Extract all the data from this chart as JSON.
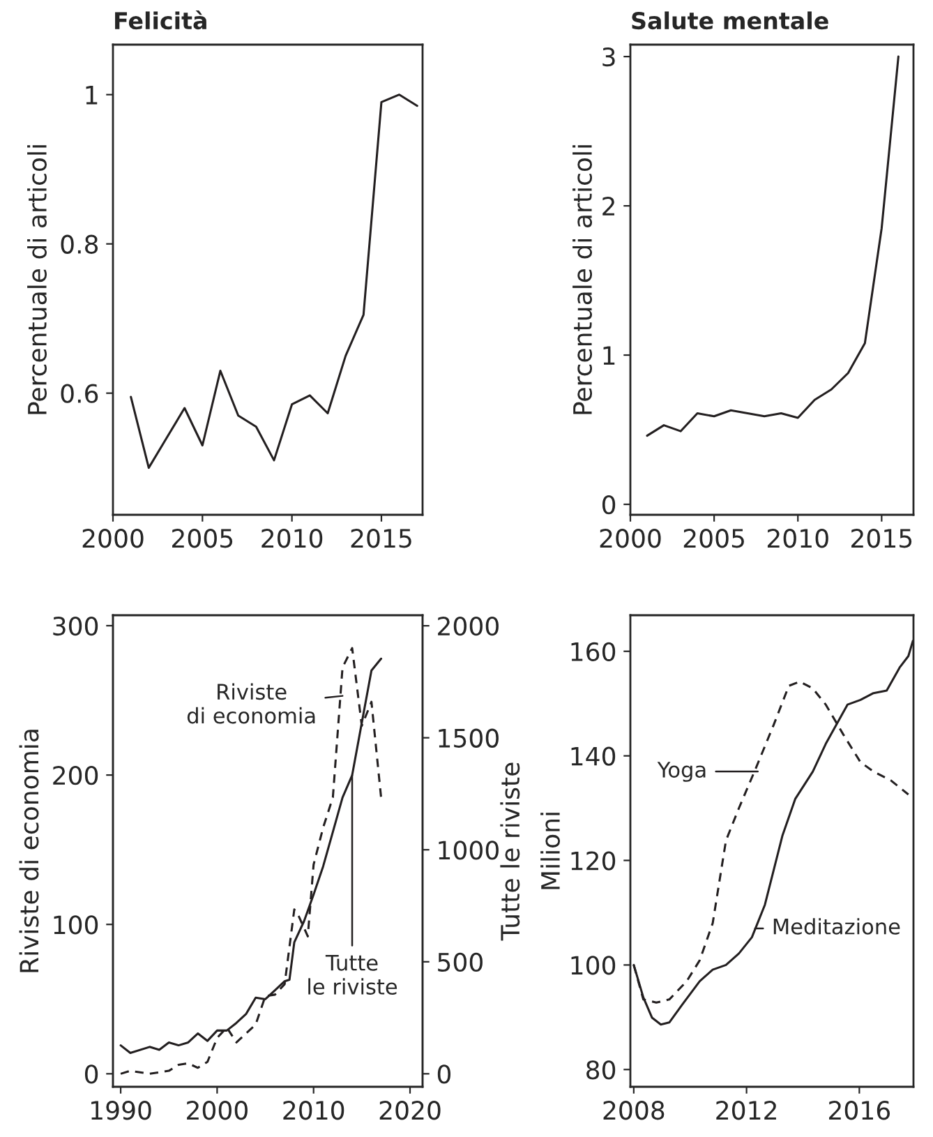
{
  "chart_data": [
    {
      "type": "line",
      "title": "Felicità",
      "ylabel": "Percentuale di articoli",
      "xlim": [
        2000,
        2017.3
      ],
      "xticks": [
        2000,
        2005,
        2010,
        2015
      ],
      "ylim": [
        0.437,
        1.067
      ],
      "yticks": [
        0.6,
        0.8,
        1
      ],
      "grid": false,
      "series": [
        {
          "color": "#231f20",
          "line_style": "solid",
          "x": [
            2001,
            2002,
            2003,
            2004,
            2005,
            2006,
            2007,
            2008,
            2009,
            2010,
            2011,
            2012,
            2013,
            2014,
            2015,
            2016,
            2017
          ],
          "values": [
            0.595,
            0.5,
            0.54,
            0.58,
            0.53,
            0.63,
            0.57,
            0.555,
            0.51,
            0.585,
            0.597,
            0.573,
            0.65,
            0.705,
            0.99,
            1.0,
            0.985
          ]
        }
      ]
    },
    {
      "type": "line",
      "title": "Salute mentale",
      "ylabel": "Percentuale di articoli",
      "xlim": [
        2000,
        2016.9
      ],
      "xticks": [
        2000,
        2005,
        2010,
        2015
      ],
      "ylim": [
        -0.07,
        3.08
      ],
      "yticks": [
        0,
        1,
        2,
        3
      ],
      "grid": false,
      "series": [
        {
          "color": "#231f20",
          "line_style": "solid",
          "x": [
            2001,
            2002,
            2003,
            2004,
            2005,
            2006,
            2007,
            2008,
            2009,
            2010,
            2011,
            2012,
            2013,
            2014,
            2015,
            2016
          ],
          "values": [
            0.46,
            0.53,
            0.49,
            0.61,
            0.59,
            0.63,
            0.61,
            0.59,
            0.61,
            0.58,
            0.7,
            0.77,
            0.88,
            1.08,
            1.85,
            3.0
          ]
        }
      ]
    },
    {
      "type": "line",
      "ylabel": "Riviste di economia",
      "y2label": "Tutte le riviste",
      "xlim": [
        1989.2,
        2021.3
      ],
      "xticks": [
        1990,
        2000,
        2010,
        2020
      ],
      "ylim": [
        -8.7,
        307
      ],
      "yticks": [
        0,
        100,
        200,
        300
      ],
      "y2lim": [
        -58,
        2047
      ],
      "y2ticks": [
        0,
        500,
        1000,
        1500,
        2000
      ],
      "grid": false,
      "series": [
        {
          "color": "#231f20",
          "line_style": "dashed",
          "x": [
            1990,
            1991,
            1993,
            1995,
            1996,
            1997,
            1998,
            1999,
            2000,
            2001,
            2002,
            2003,
            2004,
            2005,
            2006,
            2007,
            2008,
            2008.5,
            2009.4,
            2010,
            2011,
            2012,
            2013,
            2014,
            2015,
            2016,
            2017
          ],
          "values": [
            0,
            2,
            0,
            2,
            6,
            7,
            4,
            8,
            24,
            31,
            21,
            27,
            33,
            52,
            53,
            60,
            110,
            105,
            92,
            140,
            165,
            185,
            272,
            285,
            233,
            249,
            185
          ]
        },
        {
          "color": "#231f20",
          "line_style": "solid",
          "axis": "y2",
          "x": [
            1990,
            1991,
            1993,
            1994,
            1995,
            1996,
            1997,
            1998,
            1999,
            2000,
            2001,
            2002,
            2003,
            2004,
            2005,
            2006,
            2007,
            2007.5,
            2008,
            2009,
            2010,
            2011,
            2012,
            2013,
            2014,
            2015,
            2016,
            2017
          ],
          "values": [
            127,
            93,
            120,
            107,
            140,
            127,
            140,
            180,
            147,
            193,
            193,
            227,
            267,
            340,
            333,
            373,
            413,
            420,
            587,
            680,
            800,
            927,
            1080,
            1233,
            1333,
            1567,
            1800,
            1853
          ]
        }
      ],
      "annotations": [
        {
          "text": "Riviste\ndi economia",
          "x": 2013,
          "y": 253
        },
        {
          "text": "Tutte\nle riviste",
          "x": 2014,
          "y": 200
        }
      ]
    },
    {
      "type": "line",
      "ylabel": "Milioni",
      "xlim": [
        2007.88,
        2017.92
      ],
      "xticks": [
        2008,
        2012,
        2016
      ],
      "ylim": [
        76.7,
        166.9
      ],
      "yticks": [
        80,
        100,
        120,
        140,
        160
      ],
      "grid": false,
      "series": [
        {
          "color": "#231f20",
          "line_style": "solid",
          "x": [
            2008.0,
            2008.34,
            2008.65,
            2008.96,
            2009.26,
            2009.73,
            2010.34,
            2010.8,
            2011.27,
            2011.73,
            2012.19,
            2012.65,
            2013.27,
            2013.73,
            2014.35,
            2014.81,
            2015.58,
            2016.04,
            2016.5,
            2016.97,
            2017.43,
            2017.74,
            2017.9
          ],
          "values": [
            100,
            93.8,
            89.9,
            88.6,
            89.0,
            92.5,
            96.9,
            99.1,
            100,
            102.2,
            105.3,
            111.5,
            124.7,
            131.8,
            137,
            142.3,
            149.8,
            150.7,
            152,
            152.5,
            156.9,
            159.1,
            162
          ]
        },
        {
          "color": "#231f20",
          "line_style": "dashed",
          "x": [
            2008.0,
            2008.34,
            2008.8,
            2009.26,
            2009.88,
            2010.34,
            2010.8,
            2011.27,
            2011.73,
            2012.35,
            2012.96,
            2013.5,
            2013.89,
            2014.35,
            2014.81,
            2015.43,
            2016.04,
            2016.5,
            2017.12,
            2017.74
          ],
          "values": [
            100,
            93.4,
            92.8,
            93.4,
            96.9,
            100.9,
            108,
            123.8,
            130,
            137.9,
            145.9,
            153.4,
            154.2,
            152.9,
            149.8,
            144.1,
            138.8,
            137,
            135.3,
            132.6
          ]
        }
      ],
      "annotations": [
        {
          "text": "Yoga",
          "x": 2012.4,
          "y": 137
        },
        {
          "text": "Meditazione",
          "x": 2012.3,
          "y": 107
        }
      ]
    }
  ]
}
